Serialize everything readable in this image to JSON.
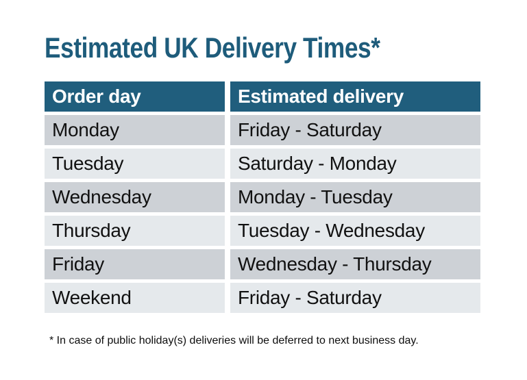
{
  "title": "Estimated UK Delivery Times*",
  "table": {
    "headers": [
      "Order day",
      "Estimated delivery"
    ],
    "rows": [
      [
        "Monday",
        "Friday - Saturday"
      ],
      [
        "Tuesday",
        "Saturday - Monday"
      ],
      [
        "Wednesday",
        "Monday - Tuesday"
      ],
      [
        "Thursday",
        "Tuesday - Wednesday"
      ],
      [
        "Friday",
        "Wednesday - Thursday"
      ],
      [
        "Weekend",
        "Friday - Saturday"
      ]
    ]
  },
  "footnote": "* In case of public holiday(s) deliveries will be deferred to next business day.",
  "colors": {
    "header_bg": "#205e7d",
    "row_dark": "#cdd1d6",
    "row_light": "#e5e9ec",
    "title_text": "#1e5c7b",
    "header_text": "#ffffff",
    "body_text": "#111111"
  }
}
